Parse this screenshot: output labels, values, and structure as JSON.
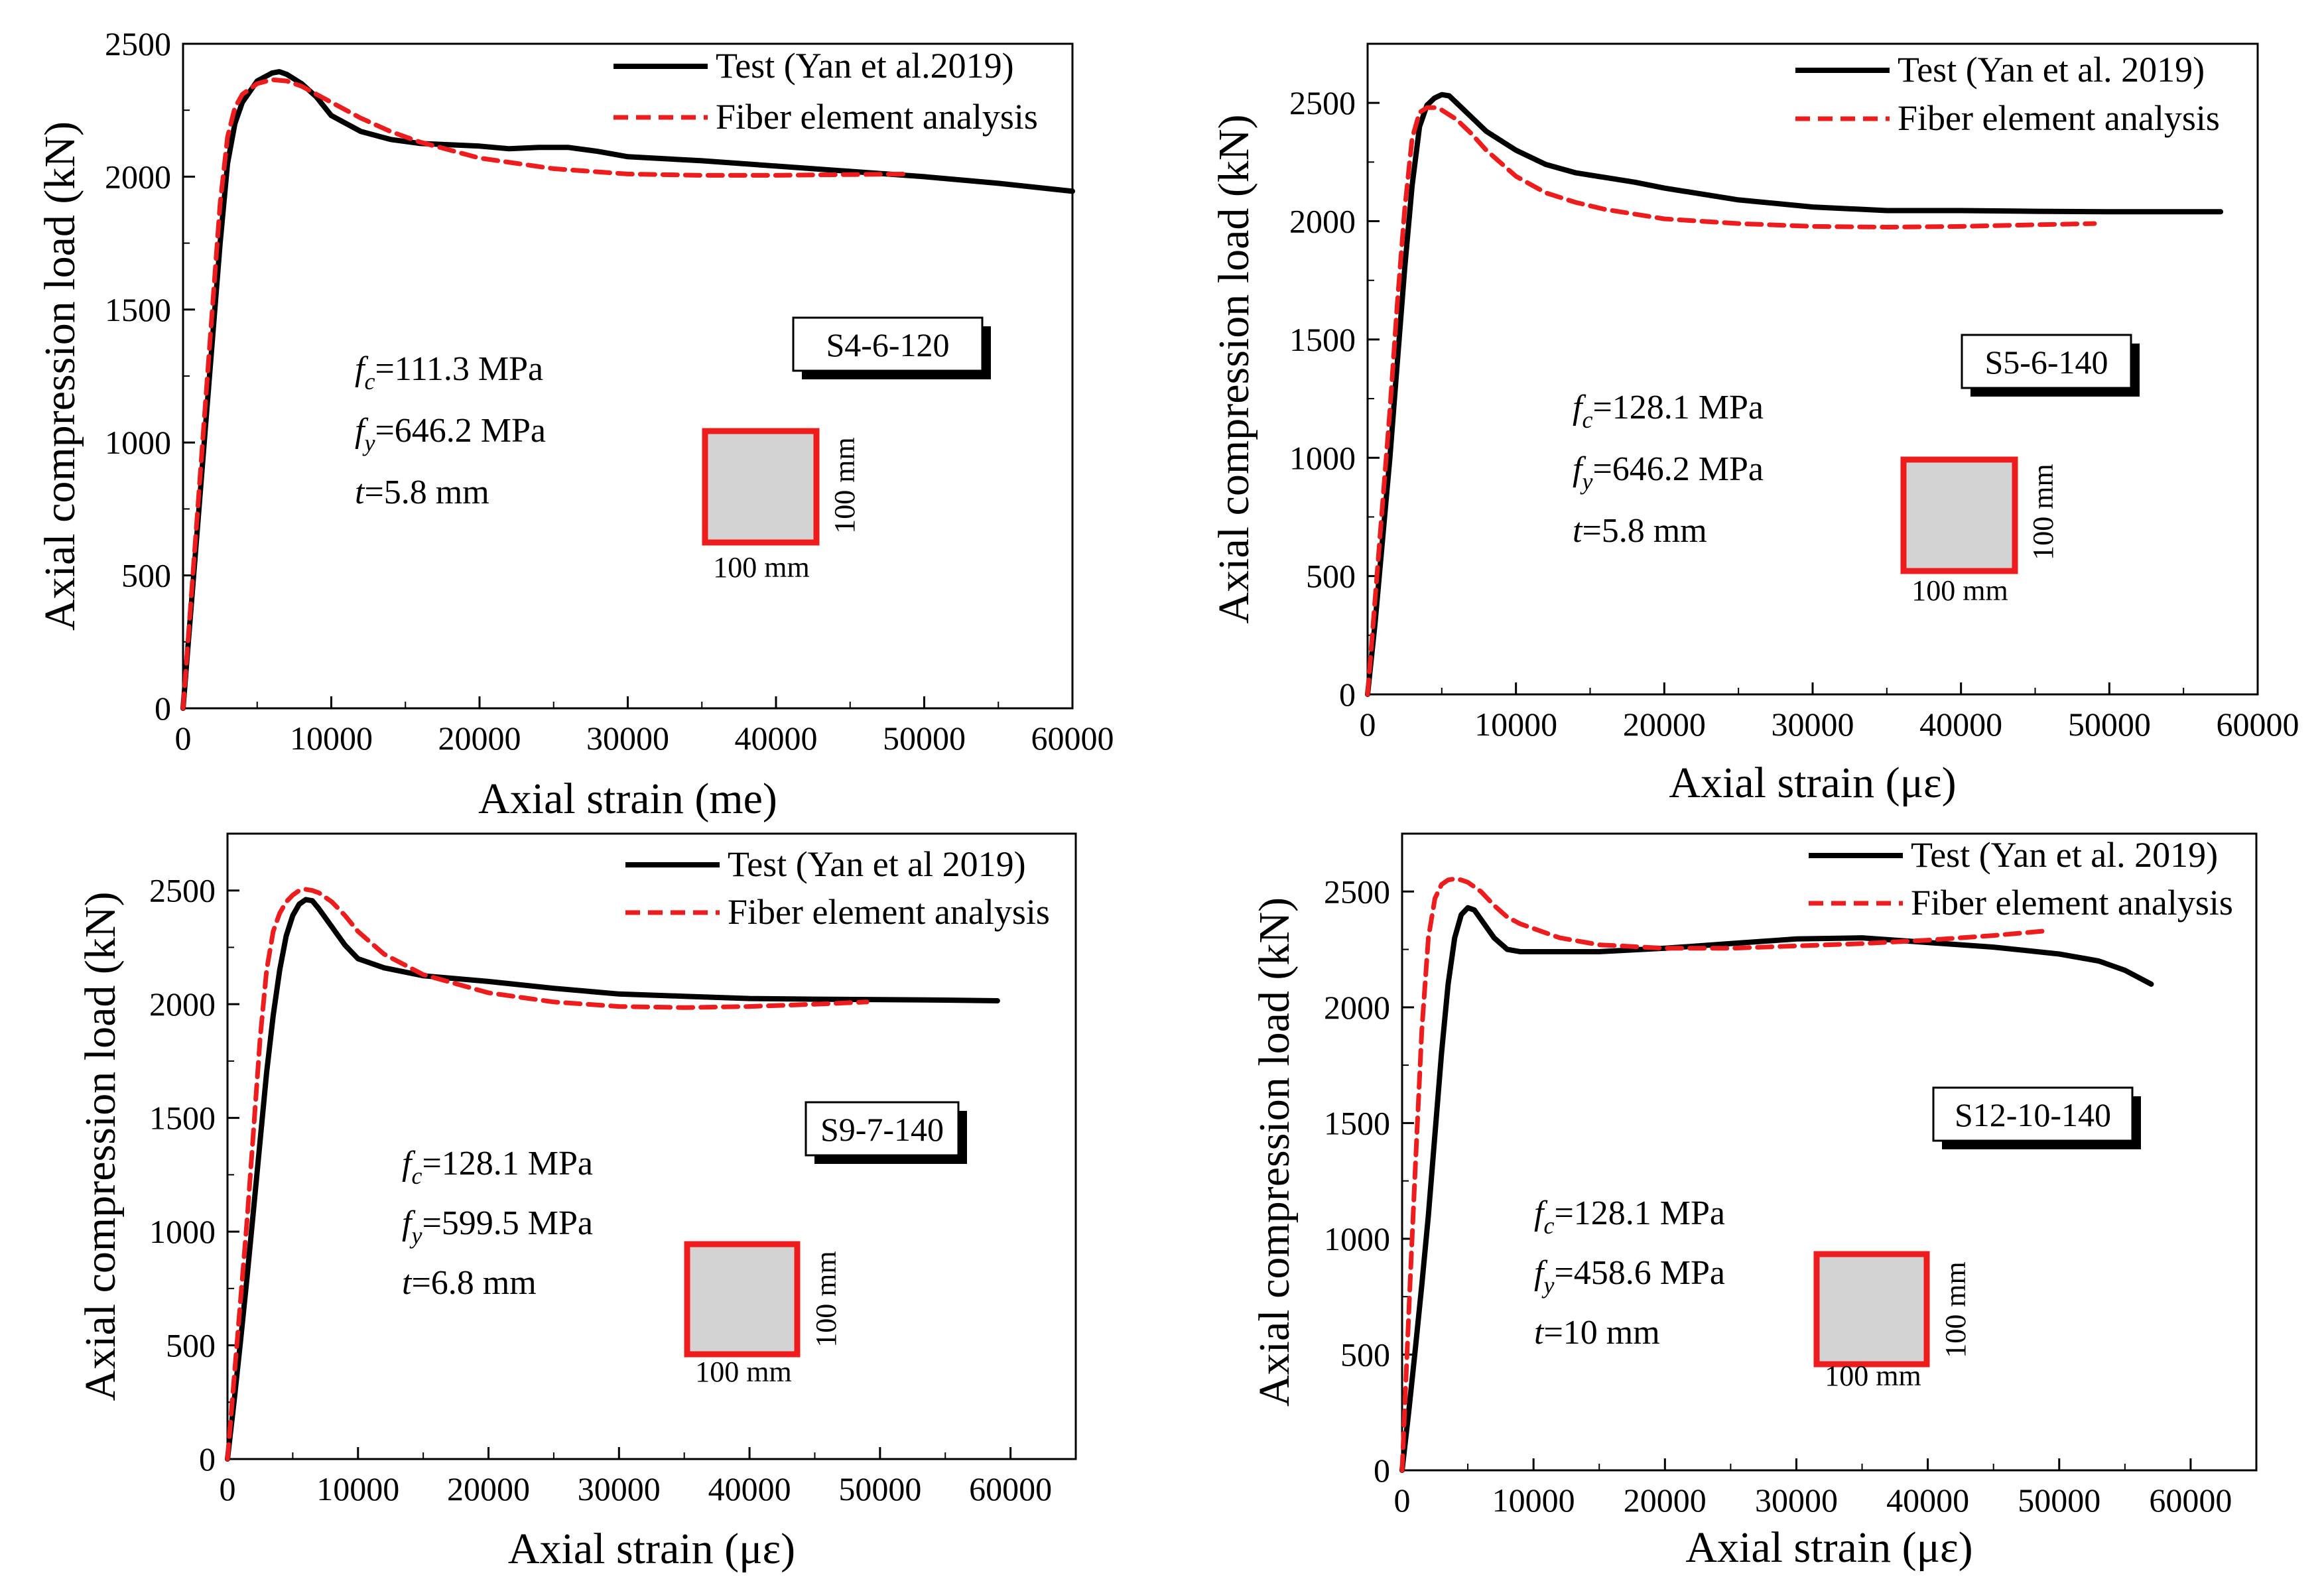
{
  "colors": {
    "test": "#000000",
    "fea": "#ee1c1c",
    "section_fill": "#d3d3d3",
    "section_edge": "#ee1c1c"
  },
  "chart_data": [
    {
      "type": "line",
      "xlabel": "Axial strain (me)",
      "ylabel": "Axial compression load (kN)",
      "xlim": [
        0,
        60000
      ],
      "ylim": [
        0,
        2500
      ],
      "xticks": [
        "0",
        "10000",
        "20000",
        "30000",
        "40000",
        "50000",
        "60000"
      ],
      "yticks": [
        "0",
        "500",
        "1000",
        "1500",
        "2000",
        "2500"
      ],
      "specimen": "S4-6-120",
      "params": [
        {
          "sym": "f",
          "sub": "c",
          "text": "=111.3 MPa"
        },
        {
          "sym": "f",
          "sub": "y",
          "text": "=646.2 MPa"
        },
        {
          "sym": "t",
          "sub": "",
          "text": "=5.8 mm"
        }
      ],
      "dim_width": "100 mm",
      "dim_height": "100 mm",
      "legend": [
        "Test (Yan et al.2019)",
        "Fiber element analysis"
      ],
      "series": [
        {
          "name": "Test (Yan et al.2019)",
          "style": "solid",
          "x": [
            0,
            500,
            1000,
            1500,
            2000,
            2500,
            3000,
            3500,
            4000,
            5000,
            6000,
            6500,
            7000,
            8000,
            9000,
            10000,
            12000,
            14000,
            16000,
            20000,
            22000,
            24000,
            26000,
            28000,
            30000,
            35000,
            40000,
            45000,
            50000,
            55000,
            60000
          ],
          "y": [
            0,
            350,
            700,
            1050,
            1400,
            1750,
            2050,
            2200,
            2280,
            2360,
            2390,
            2395,
            2385,
            2350,
            2300,
            2230,
            2170,
            2140,
            2125,
            2115,
            2105,
            2110,
            2110,
            2095,
            2075,
            2060,
            2040,
            2020,
            2000,
            1975,
            1945
          ]
        },
        {
          "name": "Fiber element analysis",
          "style": "dashed",
          "x": [
            0,
            500,
            1000,
            1500,
            2000,
            2500,
            3000,
            3500,
            4000,
            5000,
            6000,
            7000,
            8000,
            10000,
            12000,
            14000,
            16000,
            18000,
            20000,
            25000,
            30000,
            35000,
            40000,
            45000,
            49000
          ],
          "y": [
            0,
            380,
            760,
            1140,
            1520,
            1900,
            2150,
            2260,
            2310,
            2350,
            2365,
            2360,
            2340,
            2280,
            2220,
            2170,
            2130,
            2100,
            2070,
            2030,
            2010,
            2005,
            2005,
            2008,
            2010
          ]
        }
      ]
    },
    {
      "type": "line",
      "xlabel": "Axial strain (με)",
      "ylabel": "Axial compression load (kN)",
      "xlim": [
        0,
        60000
      ],
      "ylim": [
        0,
        2750
      ],
      "xticks": [
        "0",
        "10000",
        "20000",
        "30000",
        "40000",
        "50000",
        "60000"
      ],
      "yticks": [
        "0",
        "500",
        "1000",
        "1500",
        "2000",
        "2500"
      ],
      "specimen": "S5-6-140",
      "params": [
        {
          "sym": "f",
          "sub": "c",
          "text": "=128.1 MPa"
        },
        {
          "sym": "f",
          "sub": "y",
          "text": "=646.2 MPa"
        },
        {
          "sym": "t",
          "sub": "",
          "text": "=5.8 mm"
        }
      ],
      "dim_width": "100 mm",
      "dim_height": "100 mm",
      "legend": [
        "Test (Yan et al. 2019)",
        "Fiber element analysis"
      ],
      "series": [
        {
          "name": "Test (Yan et al. 2019)",
          "style": "solid",
          "x": [
            0,
            500,
            1000,
            1500,
            2000,
            2500,
            3000,
            3500,
            4000,
            4500,
            5000,
            5500,
            6000,
            7000,
            8000,
            10000,
            12000,
            14000,
            16000,
            18000,
            20000,
            25000,
            30000,
            35000,
            40000,
            45000,
            50000,
            57500
          ],
          "y": [
            0,
            300,
            650,
            1000,
            1400,
            1800,
            2150,
            2400,
            2490,
            2520,
            2535,
            2530,
            2500,
            2440,
            2380,
            2300,
            2240,
            2205,
            2185,
            2165,
            2140,
            2090,
            2060,
            2045,
            2045,
            2042,
            2040,
            2040
          ]
        },
        {
          "name": "Fiber element analysis",
          "style": "dashed",
          "x": [
            0,
            500,
            1000,
            1500,
            2000,
            2500,
            3000,
            3500,
            4000,
            4500,
            5000,
            6000,
            7000,
            8000,
            10000,
            12000,
            14000,
            16000,
            18000,
            20000,
            25000,
            30000,
            35000,
            40000,
            45000,
            49000
          ],
          "y": [
            0,
            400,
            800,
            1200,
            1650,
            2050,
            2350,
            2460,
            2480,
            2480,
            2470,
            2430,
            2370,
            2300,
            2190,
            2120,
            2080,
            2050,
            2030,
            2010,
            1990,
            1978,
            1975,
            1978,
            1985,
            1990
          ]
        }
      ]
    },
    {
      "type": "line",
      "xlabel": "Axial strain (με)",
      "ylabel": "Axial compression load (kN)",
      "xlim": [
        0,
        65000
      ],
      "ylim": [
        0,
        2750
      ],
      "xticks": [
        "0",
        "10000",
        "20000",
        "30000",
        "40000",
        "50000",
        "60000"
      ],
      "yticks": [
        "0",
        "500",
        "1000",
        "1500",
        "2000",
        "2500"
      ],
      "specimen": "S9-7-140",
      "params": [
        {
          "sym": "f",
          "sub": "c",
          "text": "=128.1 MPa"
        },
        {
          "sym": "f",
          "sub": "y",
          "text": "=599.5 MPa"
        },
        {
          "sym": "t",
          "sub": "",
          "text": "=6.8 mm"
        }
      ],
      "dim_width": "100 mm",
      "dim_height": "100 mm",
      "legend": [
        "Test (Yan et al 2019)",
        "Fiber element analysis"
      ],
      "series": [
        {
          "name": "Test (Yan et al 2019)",
          "style": "solid",
          "x": [
            0,
            500,
            1000,
            1500,
            2000,
            2500,
            3000,
            3500,
            4000,
            4500,
            5000,
            5500,
            6000,
            6500,
            7000,
            8000,
            9000,
            10000,
            12000,
            15000,
            20000,
            25000,
            30000,
            35000,
            40000,
            45000,
            50000,
            55000,
            59000
          ],
          "y": [
            0,
            250,
            520,
            800,
            1100,
            1400,
            1700,
            1950,
            2150,
            2300,
            2390,
            2440,
            2460,
            2455,
            2420,
            2340,
            2260,
            2200,
            2160,
            2125,
            2100,
            2070,
            2045,
            2035,
            2025,
            2022,
            2020,
            2018,
            2015
          ]
        },
        {
          "name": "Fiber element analysis",
          "style": "dashed",
          "x": [
            0,
            500,
            1000,
            1500,
            2000,
            2500,
            3000,
            3500,
            4000,
            4500,
            5000,
            5500,
            6000,
            6500,
            7000,
            8000,
            9000,
            10000,
            12000,
            15000,
            20000,
            25000,
            30000,
            35000,
            40000,
            45000,
            49000
          ],
          "y": [
            0,
            350,
            700,
            1050,
            1450,
            1850,
            2150,
            2320,
            2400,
            2450,
            2480,
            2500,
            2505,
            2500,
            2490,
            2450,
            2390,
            2320,
            2220,
            2130,
            2050,
            2010,
            1990,
            1985,
            1990,
            2000,
            2010
          ]
        }
      ]
    },
    {
      "type": "line",
      "xlabel": "Axial strain (με)",
      "ylabel": "Axial compression load (kN)",
      "xlim": [
        0,
        65000
      ],
      "ylim": [
        0,
        2750
      ],
      "xticks": [
        "0",
        "10000",
        "20000",
        "30000",
        "40000",
        "50000",
        "60000"
      ],
      "yticks": [
        "0",
        "500",
        "1000",
        "1500",
        "2000",
        "2500"
      ],
      "specimen": "S12-10-140",
      "params": [
        {
          "sym": "f",
          "sub": "c",
          "text": "=128.1 MPa"
        },
        {
          "sym": "f",
          "sub": "y",
          "text": "=458.6 MPa"
        },
        {
          "sym": "t",
          "sub": "",
          "text": "=10 mm"
        }
      ],
      "dim_width": "100 mm",
      "dim_height": "100 mm",
      "legend": [
        "Test (Yan et al. 2019)",
        "Fiber element analysis"
      ],
      "series": [
        {
          "name": "Test (Yan et al. 2019)",
          "style": "solid",
          "x": [
            0,
            500,
            1000,
            1500,
            2000,
            2500,
            3000,
            3500,
            4000,
            4500,
            5000,
            5500,
            6000,
            7000,
            8000,
            9000,
            10000,
            12000,
            15000,
            20000,
            25000,
            30000,
            35000,
            40000,
            45000,
            50000,
            53000,
            55000,
            57000
          ],
          "y": [
            0,
            250,
            520,
            800,
            1100,
            1450,
            1800,
            2100,
            2300,
            2400,
            2430,
            2420,
            2380,
            2300,
            2250,
            2240,
            2240,
            2240,
            2240,
            2255,
            2275,
            2295,
            2300,
            2280,
            2260,
            2230,
            2200,
            2160,
            2100
          ]
        },
        {
          "name": "Fiber element analysis",
          "style": "dashed",
          "x": [
            0,
            300,
            600,
            1000,
            1500,
            2000,
            2500,
            3000,
            3500,
            4000,
            4500,
            5000,
            6000,
            7000,
            8000,
            9000,
            10000,
            12000,
            15000,
            20000,
            25000,
            30000,
            35000,
            40000,
            45000,
            49000
          ],
          "y": [
            0,
            400,
            800,
            1300,
            1900,
            2300,
            2470,
            2530,
            2550,
            2555,
            2550,
            2540,
            2500,
            2440,
            2390,
            2360,
            2340,
            2300,
            2270,
            2255,
            2255,
            2265,
            2275,
            2290,
            2310,
            2330
          ]
        }
      ]
    }
  ]
}
